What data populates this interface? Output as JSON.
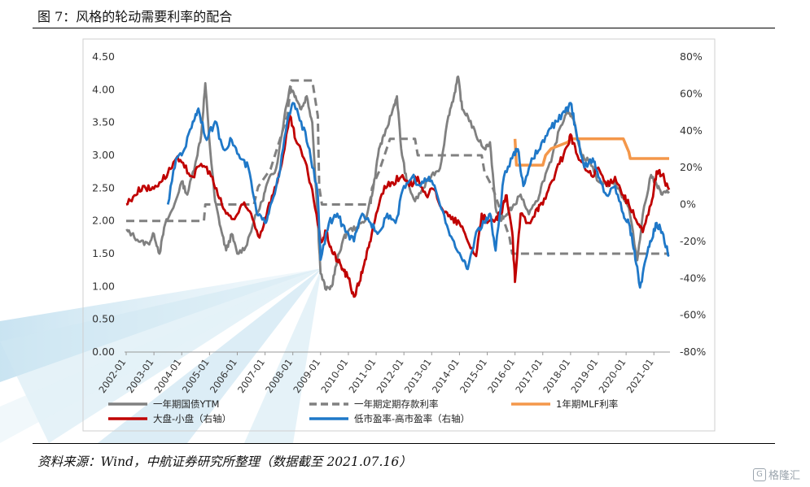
{
  "figure": {
    "title": "图 7：风格的轮动需要利率的配合",
    "source": "资料来源：Wind，中航证券研究所整理（数据截至 2021.07.16）",
    "watermark": "格隆汇"
  },
  "chart_data": {
    "type": "line",
    "title": "",
    "xlabel": "",
    "ylabel": "",
    "x_ticks": [
      "2002-01",
      "2003-01",
      "2004-01",
      "2005-01",
      "2006-01",
      "2007-01",
      "2008-01",
      "2009-01",
      "2010-01",
      "2011-01",
      "2012-01",
      "2013-01",
      "2014-01",
      "2015-01",
      "2016-01",
      "2017-01",
      "2018-01",
      "2019-01",
      "2020-01",
      "2021-01"
    ],
    "x_range": [
      2002.0,
      2021.55
    ],
    "y_left": {
      "range": [
        0,
        4.5
      ],
      "ticks": [
        "0.00",
        "0.50",
        "1.00",
        "1.50",
        "2.00",
        "2.50",
        "3.00",
        "3.50",
        "4.00",
        "4.50"
      ]
    },
    "y_right": {
      "range": [
        -80,
        80
      ],
      "ticks": [
        "-80%",
        "-60%",
        "-40%",
        "-20%",
        "0%",
        "20%",
        "40%",
        "60%",
        "80%"
      ]
    },
    "legend_position": "bottom",
    "series": [
      {
        "name": "一年期国债YTM",
        "axis": "left",
        "color": "#808080",
        "dash": "solid",
        "points": [
          [
            2002.0,
            1.85
          ],
          [
            2002.2,
            1.8
          ],
          [
            2002.5,
            1.68
          ],
          [
            2002.8,
            1.65
          ],
          [
            2003.0,
            1.8
          ],
          [
            2003.2,
            1.5
          ],
          [
            2003.4,
            1.95
          ],
          [
            2003.7,
            2.2
          ],
          [
            2004.0,
            2.6
          ],
          [
            2004.2,
            2.4
          ],
          [
            2004.5,
            2.9
          ],
          [
            2004.7,
            3.3
          ],
          [
            2004.85,
            4.1
          ],
          [
            2005.0,
            3.2
          ],
          [
            2005.2,
            2.3
          ],
          [
            2005.4,
            1.9
          ],
          [
            2005.6,
            1.55
          ],
          [
            2005.8,
            1.8
          ],
          [
            2006.0,
            1.5
          ],
          [
            2006.3,
            1.6
          ],
          [
            2006.6,
            2.0
          ],
          [
            2006.9,
            2.3
          ],
          [
            2007.1,
            2.6
          ],
          [
            2007.4,
            2.8
          ],
          [
            2007.7,
            3.6
          ],
          [
            2007.9,
            4.05
          ],
          [
            2008.1,
            3.9
          ],
          [
            2008.3,
            3.7
          ],
          [
            2008.5,
            3.9
          ],
          [
            2008.7,
            3.5
          ],
          [
            2008.9,
            2.0
          ],
          [
            2009.0,
            1.2
          ],
          [
            2009.2,
            0.95
          ],
          [
            2009.4,
            1.0
          ],
          [
            2009.6,
            1.4
          ],
          [
            2009.8,
            1.7
          ],
          [
            2010.0,
            1.85
          ],
          [
            2010.3,
            1.9
          ],
          [
            2010.6,
            2.0
          ],
          [
            2010.9,
            2.5
          ],
          [
            2011.1,
            3.1
          ],
          [
            2011.3,
            3.3
          ],
          [
            2011.6,
            3.7
          ],
          [
            2011.75,
            3.9
          ],
          [
            2011.9,
            3.1
          ],
          [
            2012.1,
            2.6
          ],
          [
            2012.4,
            2.3
          ],
          [
            2012.7,
            2.5
          ],
          [
            2013.0,
            2.7
          ],
          [
            2013.3,
            2.8
          ],
          [
            2013.6,
            3.6
          ],
          [
            2013.8,
            3.9
          ],
          [
            2013.95,
            4.2
          ],
          [
            2014.1,
            3.7
          ],
          [
            2014.3,
            3.6
          ],
          [
            2014.6,
            3.3
          ],
          [
            2014.9,
            3.1
          ],
          [
            2015.1,
            3.2
          ],
          [
            2015.3,
            2.2
          ],
          [
            2015.5,
            2.0
          ],
          [
            2015.7,
            2.1
          ],
          [
            2015.9,
            2.2
          ],
          [
            2016.2,
            2.4
          ],
          [
            2016.5,
            2.1
          ],
          [
            2016.8,
            2.3
          ],
          [
            2017.0,
            2.6
          ],
          [
            2017.3,
            2.9
          ],
          [
            2017.6,
            3.4
          ],
          [
            2017.9,
            3.7
          ],
          [
            2018.1,
            3.55
          ],
          [
            2018.4,
            3.0
          ],
          [
            2018.7,
            2.9
          ],
          [
            2019.0,
            2.6
          ],
          [
            2019.3,
            2.55
          ],
          [
            2019.6,
            2.6
          ],
          [
            2019.9,
            2.35
          ],
          [
            2020.1,
            2.2
          ],
          [
            2020.4,
            1.4
          ],
          [
            2020.6,
            2.1
          ],
          [
            2020.9,
            2.7
          ],
          [
            2021.1,
            2.55
          ],
          [
            2021.3,
            2.4
          ],
          [
            2021.55,
            2.45
          ]
        ]
      },
      {
        "name": "一年期定期存款利率",
        "axis": "left",
        "color": "#808080",
        "dash": "dashed",
        "points": [
          [
            2002.0,
            2.0
          ],
          [
            2004.8,
            2.0
          ],
          [
            2004.85,
            2.25
          ],
          [
            2006.6,
            2.25
          ],
          [
            2006.75,
            2.52
          ],
          [
            2007.2,
            2.79
          ],
          [
            2007.4,
            3.06
          ],
          [
            2007.6,
            3.33
          ],
          [
            2007.8,
            3.6
          ],
          [
            2007.95,
            4.14
          ],
          [
            2008.7,
            4.14
          ],
          [
            2008.8,
            3.87
          ],
          [
            2008.9,
            3.6
          ],
          [
            2008.95,
            2.52
          ],
          [
            2009.05,
            2.25
          ],
          [
            2010.8,
            2.25
          ],
          [
            2010.85,
            2.5
          ],
          [
            2011.1,
            2.75
          ],
          [
            2011.3,
            3.0
          ],
          [
            2011.5,
            3.25
          ],
          [
            2012.4,
            3.25
          ],
          [
            2012.5,
            3.0
          ],
          [
            2012.55,
            3.0
          ],
          [
            2014.8,
            3.0
          ],
          [
            2014.9,
            2.75
          ],
          [
            2015.2,
            2.5
          ],
          [
            2015.4,
            2.25
          ],
          [
            2015.6,
            2.0
          ],
          [
            2015.8,
            1.75
          ],
          [
            2015.9,
            1.5
          ],
          [
            2021.55,
            1.5
          ]
        ]
      },
      {
        "name": "1年期MLF利率",
        "axis": "left",
        "color": "#f4974a",
        "dash": "solid",
        "points": [
          [
            2016.0,
            3.25
          ],
          [
            2016.05,
            2.85
          ],
          [
            2017.0,
            2.85
          ],
          [
            2017.1,
            3.0
          ],
          [
            2017.3,
            3.1
          ],
          [
            2017.9,
            3.2
          ],
          [
            2018.0,
            3.25
          ],
          [
            2019.9,
            3.25
          ],
          [
            2020.0,
            3.15
          ],
          [
            2020.1,
            3.05
          ],
          [
            2020.15,
            2.95
          ],
          [
            2020.3,
            2.95
          ],
          [
            2020.35,
            2.95
          ],
          [
            2021.55,
            2.95
          ]
        ]
      },
      {
        "name": "大盘-小盘（右轴）",
        "axis": "right",
        "color": "#c00000",
        "dash": "solid",
        "points": [
          [
            2002.0,
            0
          ],
          [
            2002.3,
            5
          ],
          [
            2002.6,
            10
          ],
          [
            2002.9,
            8
          ],
          [
            2003.2,
            12
          ],
          [
            2003.5,
            17
          ],
          [
            2003.8,
            25
          ],
          [
            2004.1,
            20
          ],
          [
            2004.4,
            15
          ],
          [
            2004.7,
            22
          ],
          [
            2005.0,
            18
          ],
          [
            2005.3,
            5
          ],
          [
            2005.6,
            -5
          ],
          [
            2005.9,
            -8
          ],
          [
            2006.2,
            0
          ],
          [
            2006.5,
            -5
          ],
          [
            2006.8,
            -18
          ],
          [
            2007.1,
            -2
          ],
          [
            2007.4,
            10
          ],
          [
            2007.7,
            30
          ],
          [
            2007.9,
            48
          ],
          [
            2008.1,
            35
          ],
          [
            2008.4,
            25
          ],
          [
            2008.7,
            8
          ],
          [
            2009.0,
            -20
          ],
          [
            2009.2,
            -15
          ],
          [
            2009.4,
            -25
          ],
          [
            2009.6,
            -30
          ],
          [
            2009.8,
            -35
          ],
          [
            2010.0,
            -40
          ],
          [
            2010.2,
            -50
          ],
          [
            2010.4,
            -42
          ],
          [
            2010.6,
            -30
          ],
          [
            2010.8,
            -20
          ],
          [
            2011.0,
            -5
          ],
          [
            2011.3,
            10
          ],
          [
            2011.6,
            12
          ],
          [
            2011.9,
            15
          ],
          [
            2012.2,
            10
          ],
          [
            2012.5,
            15
          ],
          [
            2012.8,
            5
          ],
          [
            2013.1,
            8
          ],
          [
            2013.4,
            -3
          ],
          [
            2013.7,
            -8
          ],
          [
            2014.0,
            -10
          ],
          [
            2014.3,
            -20
          ],
          [
            2014.6,
            -28
          ],
          [
            2014.8,
            -5
          ],
          [
            2015.0,
            -10
          ],
          [
            2015.3,
            -8
          ],
          [
            2015.5,
            -5
          ],
          [
            2015.7,
            5
          ],
          [
            2015.9,
            -15
          ],
          [
            2016.0,
            -42
          ],
          [
            2016.2,
            -5
          ],
          [
            2016.5,
            -10
          ],
          [
            2016.8,
            -2
          ],
          [
            2017.0,
            0
          ],
          [
            2017.3,
            12
          ],
          [
            2017.6,
            22
          ],
          [
            2017.9,
            32
          ],
          [
            2018.0,
            38
          ],
          [
            2018.2,
            28
          ],
          [
            2018.5,
            20
          ],
          [
            2018.8,
            15
          ],
          [
            2019.0,
            20
          ],
          [
            2019.3,
            10
          ],
          [
            2019.6,
            15
          ],
          [
            2019.9,
            5
          ],
          [
            2020.1,
            0
          ],
          [
            2020.4,
            -10
          ],
          [
            2020.6,
            -15
          ],
          [
            2020.9,
            0
          ],
          [
            2021.1,
            18
          ],
          [
            2021.3,
            16
          ],
          [
            2021.55,
            8
          ]
        ]
      },
      {
        "name": "低市盈率-高市盈率（右轴）",
        "axis": "right",
        "color": "#1f78c8",
        "dash": "solid",
        "points": [
          [
            2003.5,
            0
          ],
          [
            2003.8,
            25
          ],
          [
            2004.1,
            30
          ],
          [
            2004.4,
            45
          ],
          [
            2004.6,
            52
          ],
          [
            2004.9,
            35
          ],
          [
            2005.2,
            45
          ],
          [
            2005.5,
            30
          ],
          [
            2005.8,
            35
          ],
          [
            2006.1,
            25
          ],
          [
            2006.4,
            20
          ],
          [
            2006.7,
            -5
          ],
          [
            2007.0,
            -10
          ],
          [
            2007.2,
            0
          ],
          [
            2007.5,
            15
          ],
          [
            2007.8,
            45
          ],
          [
            2008.0,
            55
          ],
          [
            2008.3,
            45
          ],
          [
            2008.6,
            30
          ],
          [
            2008.9,
            5
          ],
          [
            2009.0,
            -30
          ],
          [
            2009.3,
            -10
          ],
          [
            2009.6,
            -5
          ],
          [
            2009.9,
            -15
          ],
          [
            2010.2,
            -20
          ],
          [
            2010.5,
            -5
          ],
          [
            2010.8,
            -10
          ],
          [
            2011.1,
            -15
          ],
          [
            2011.4,
            -5
          ],
          [
            2011.7,
            -10
          ],
          [
            2012.0,
            10
          ],
          [
            2012.3,
            15
          ],
          [
            2012.6,
            10
          ],
          [
            2012.9,
            15
          ],
          [
            2013.2,
            5
          ],
          [
            2013.5,
            -10
          ],
          [
            2013.8,
            -20
          ],
          [
            2014.1,
            -30
          ],
          [
            2014.3,
            -35
          ],
          [
            2014.6,
            -15
          ],
          [
            2014.9,
            -10
          ],
          [
            2015.1,
            -5
          ],
          [
            2015.3,
            -25
          ],
          [
            2015.6,
            15
          ],
          [
            2015.9,
            25
          ],
          [
            2016.1,
            30
          ],
          [
            2016.3,
            10
          ],
          [
            2016.6,
            25
          ],
          [
            2016.9,
            30
          ],
          [
            2017.2,
            40
          ],
          [
            2017.5,
            45
          ],
          [
            2017.8,
            50
          ],
          [
            2018.0,
            55
          ],
          [
            2018.2,
            40
          ],
          [
            2018.5,
            20
          ],
          [
            2018.8,
            25
          ],
          [
            2019.0,
            15
          ],
          [
            2019.3,
            5
          ],
          [
            2019.6,
            10
          ],
          [
            2019.9,
            -5
          ],
          [
            2020.1,
            -10
          ],
          [
            2020.3,
            -25
          ],
          [
            2020.5,
            -45
          ],
          [
            2020.7,
            -30
          ],
          [
            2020.9,
            -20
          ],
          [
            2021.1,
            -10
          ],
          [
            2021.3,
            -15
          ],
          [
            2021.55,
            -28
          ]
        ]
      }
    ]
  }
}
